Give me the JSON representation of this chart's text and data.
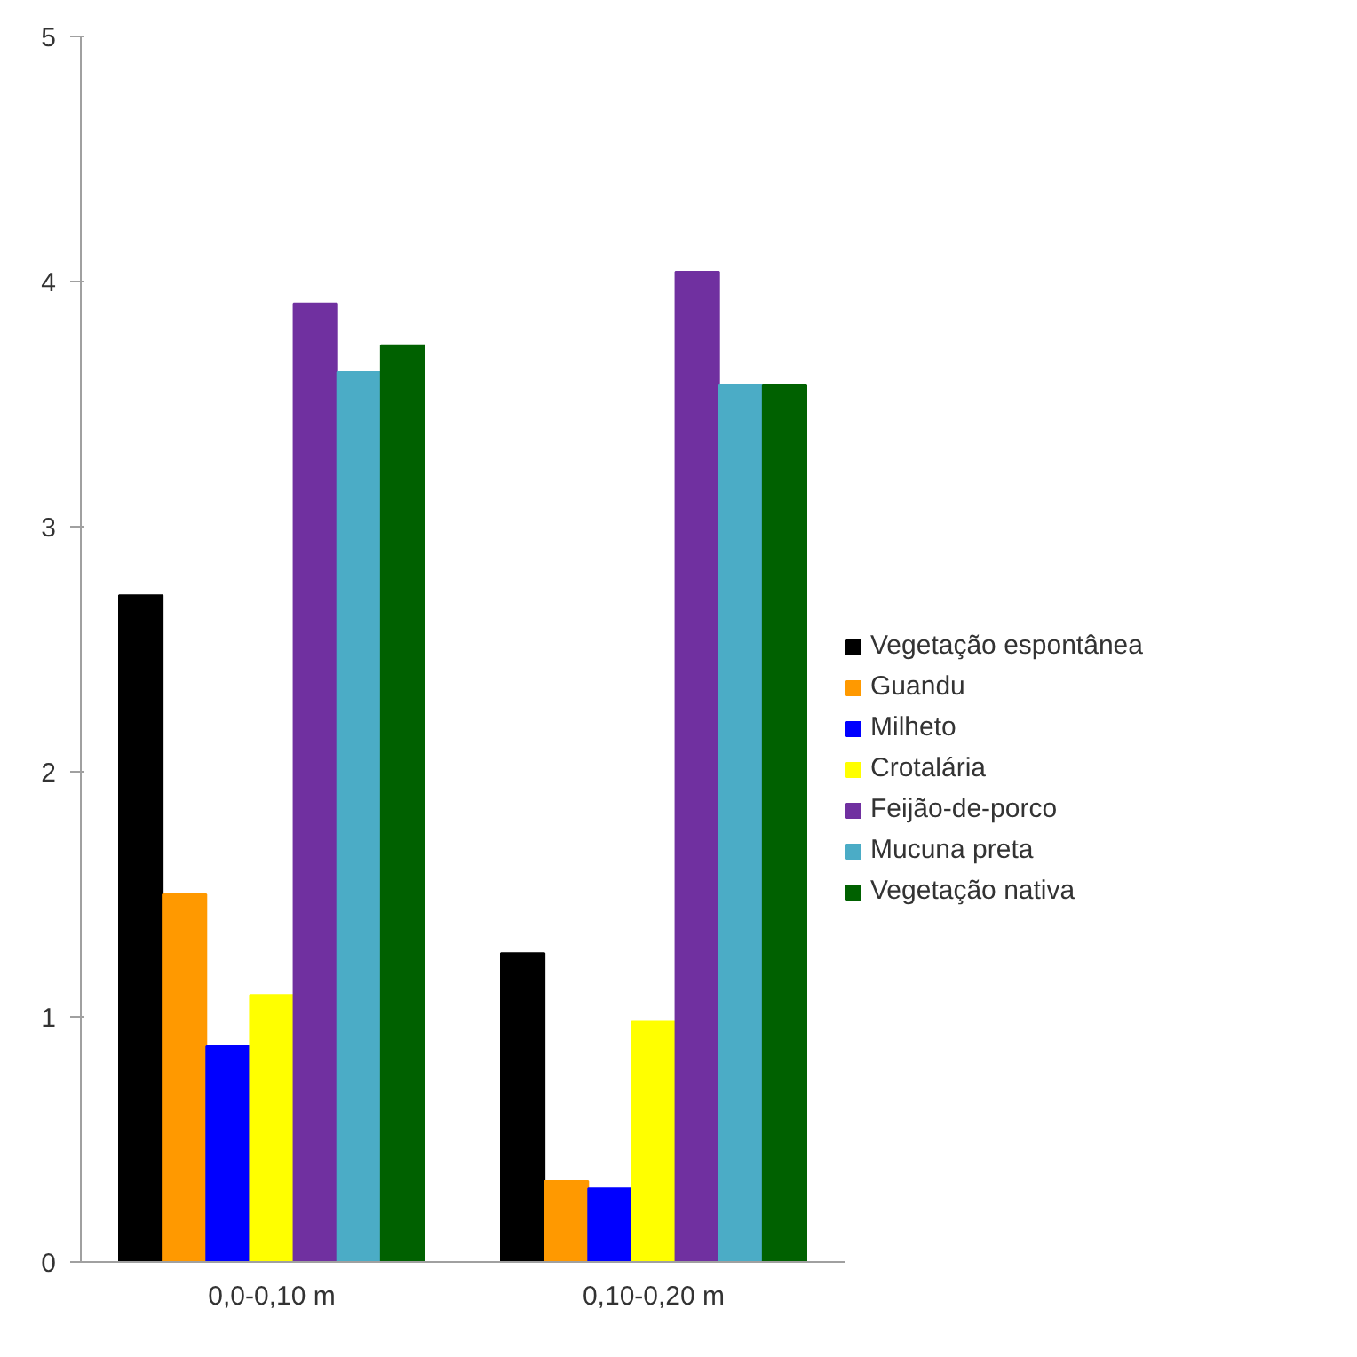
{
  "chart_data": {
    "type": "bar",
    "categories": [
      "0,0-0,10 m",
      "0,10-0,20 m"
    ],
    "series": [
      {
        "name": "Vegetação espontânea",
        "color": "#000000",
        "values": [
          2.72,
          1.26
        ]
      },
      {
        "name": "Guandu",
        "color": "#ff9900",
        "values": [
          1.5,
          0.33
        ]
      },
      {
        "name": "Milheto",
        "color": "#0000ff",
        "values": [
          0.88,
          0.3
        ]
      },
      {
        "name": "Crotalária",
        "color": "#ffff00",
        "values": [
          1.09,
          0.98
        ]
      },
      {
        "name": "Feijão-de-porco",
        "color": "#7030a0",
        "values": [
          3.91,
          4.04
        ]
      },
      {
        "name": "Mucuna preta",
        "color": "#4bacc6",
        "values": [
          3.63,
          3.58
        ]
      },
      {
        "name": "Vegetação nativa",
        "color": "#006100",
        "values": [
          3.74,
          3.58
        ]
      }
    ],
    "ylim": [
      0,
      5
    ],
    "yticks": [
      0,
      1,
      2,
      3,
      4,
      5
    ],
    "grid": false,
    "legend": "right"
  }
}
